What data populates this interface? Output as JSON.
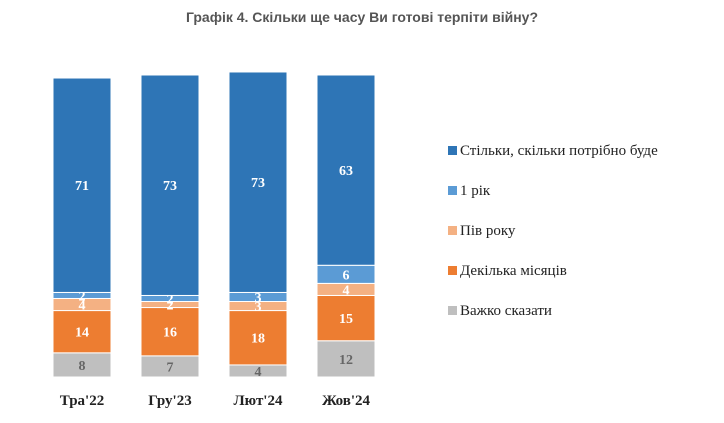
{
  "chart_data": {
    "type": "bar",
    "stacked": true,
    "title": "Графік 4. Скільки ще часу Ви готові терпіти війну?",
    "categories": [
      "Тра'22",
      "Гру'23",
      "Лют'24",
      "Жов'24"
    ],
    "ylim": [
      0,
      100
    ],
    "legend_position": "right",
    "series": [
      {
        "name": "Стільки, скільки потрібно буде",
        "color": "#2E75B6",
        "label_color": "#ffffff",
        "values": [
          71,
          73,
          73,
          63
        ]
      },
      {
        "name": "1 рік",
        "color": "#5B9BD5",
        "label_color": "#ffffff",
        "values": [
          2,
          2,
          3,
          6
        ]
      },
      {
        "name": "Пів року",
        "color": "#F4B183",
        "label_color": "#ffffff",
        "values": [
          4,
          2,
          3,
          4
        ]
      },
      {
        "name": "Декілька місяців",
        "color": "#ED7D31",
        "label_color": "#ffffff",
        "values": [
          14,
          16,
          18,
          15
        ]
      },
      {
        "name": "Важко сказати",
        "color": "#BFBFBF",
        "label_color": "#666666",
        "values": [
          8,
          7,
          4,
          12
        ]
      }
    ]
  }
}
